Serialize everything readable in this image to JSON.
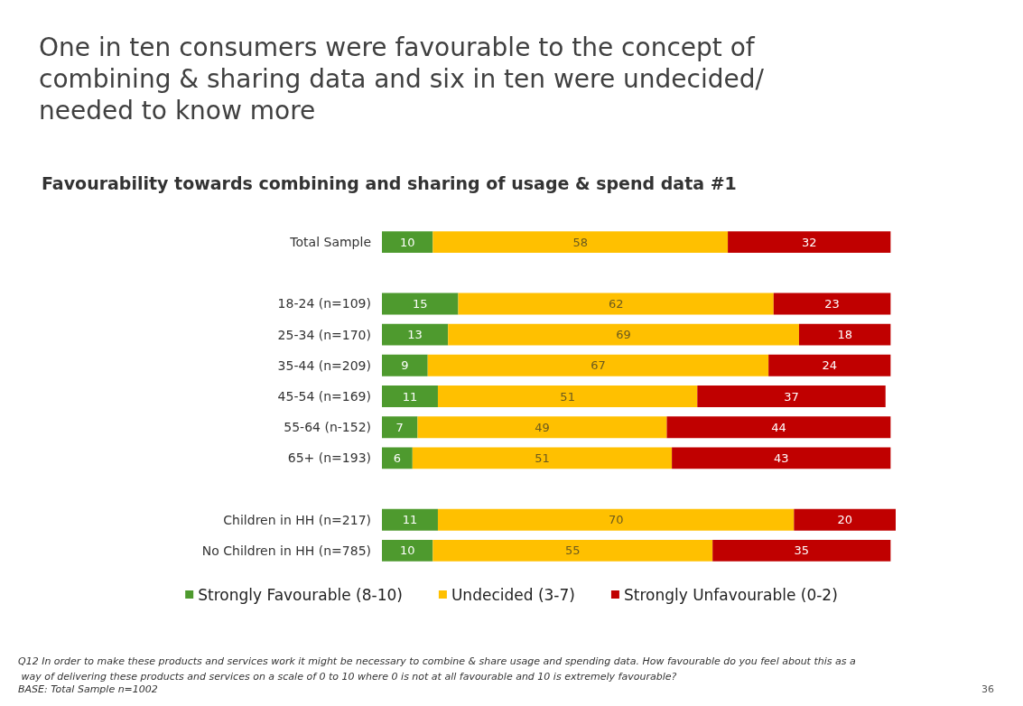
{
  "chart_data": {
    "type": "bar",
    "orientation": "horizontal",
    "stacked": true,
    "data_labels": true,
    "grid": false,
    "legend": "bottom",
    "tick_labels": "y",
    "title": "One in ten consumers were favourable to the concept of combining & sharing data and six in ten were undecided/needed to know more",
    "subtitle": "Favourability towards combining and sharing of usage & spend data #1",
    "categories": [
      "Total Sample",
      null,
      "18-24 (n=109)",
      "25-34 (n=170)",
      "35-44 (n=209)",
      "45-54 (n=169)",
      "55-64 (n-152)",
      "65+ (n=193)",
      null,
      "Children in HH (n=217)",
      "No Children in HH (n=785)"
    ],
    "series": [
      {
        "name": "Strongly Favourable (8-10)",
        "color": "#4e9a2e",
        "values": [
          10,
          null,
          15,
          13,
          9,
          11,
          7,
          6,
          null,
          11,
          10
        ]
      },
      {
        "name": "Undecided (3-7)",
        "color": "#ffc000",
        "values": [
          58,
          null,
          62,
          69,
          67,
          51,
          49,
          51,
          null,
          70,
          55
        ]
      },
      {
        "name": "Strongly Unfavourable (0-2)",
        "color": "#c00000",
        "values": [
          32,
          null,
          23,
          18,
          24,
          37,
          44,
          43,
          null,
          20,
          35
        ]
      }
    ],
    "annotations": [
      "Q12 In order to make these products and services work it might be necessary to combine & share usage and spending data. How favourable do you feel about this as a way of delivering these products and services on a scale of 0 to 10 where 0 is not at all favourable and 10 is extremely favourable?",
      "BASE: Total Sample n=1002",
      "36"
    ]
  }
}
